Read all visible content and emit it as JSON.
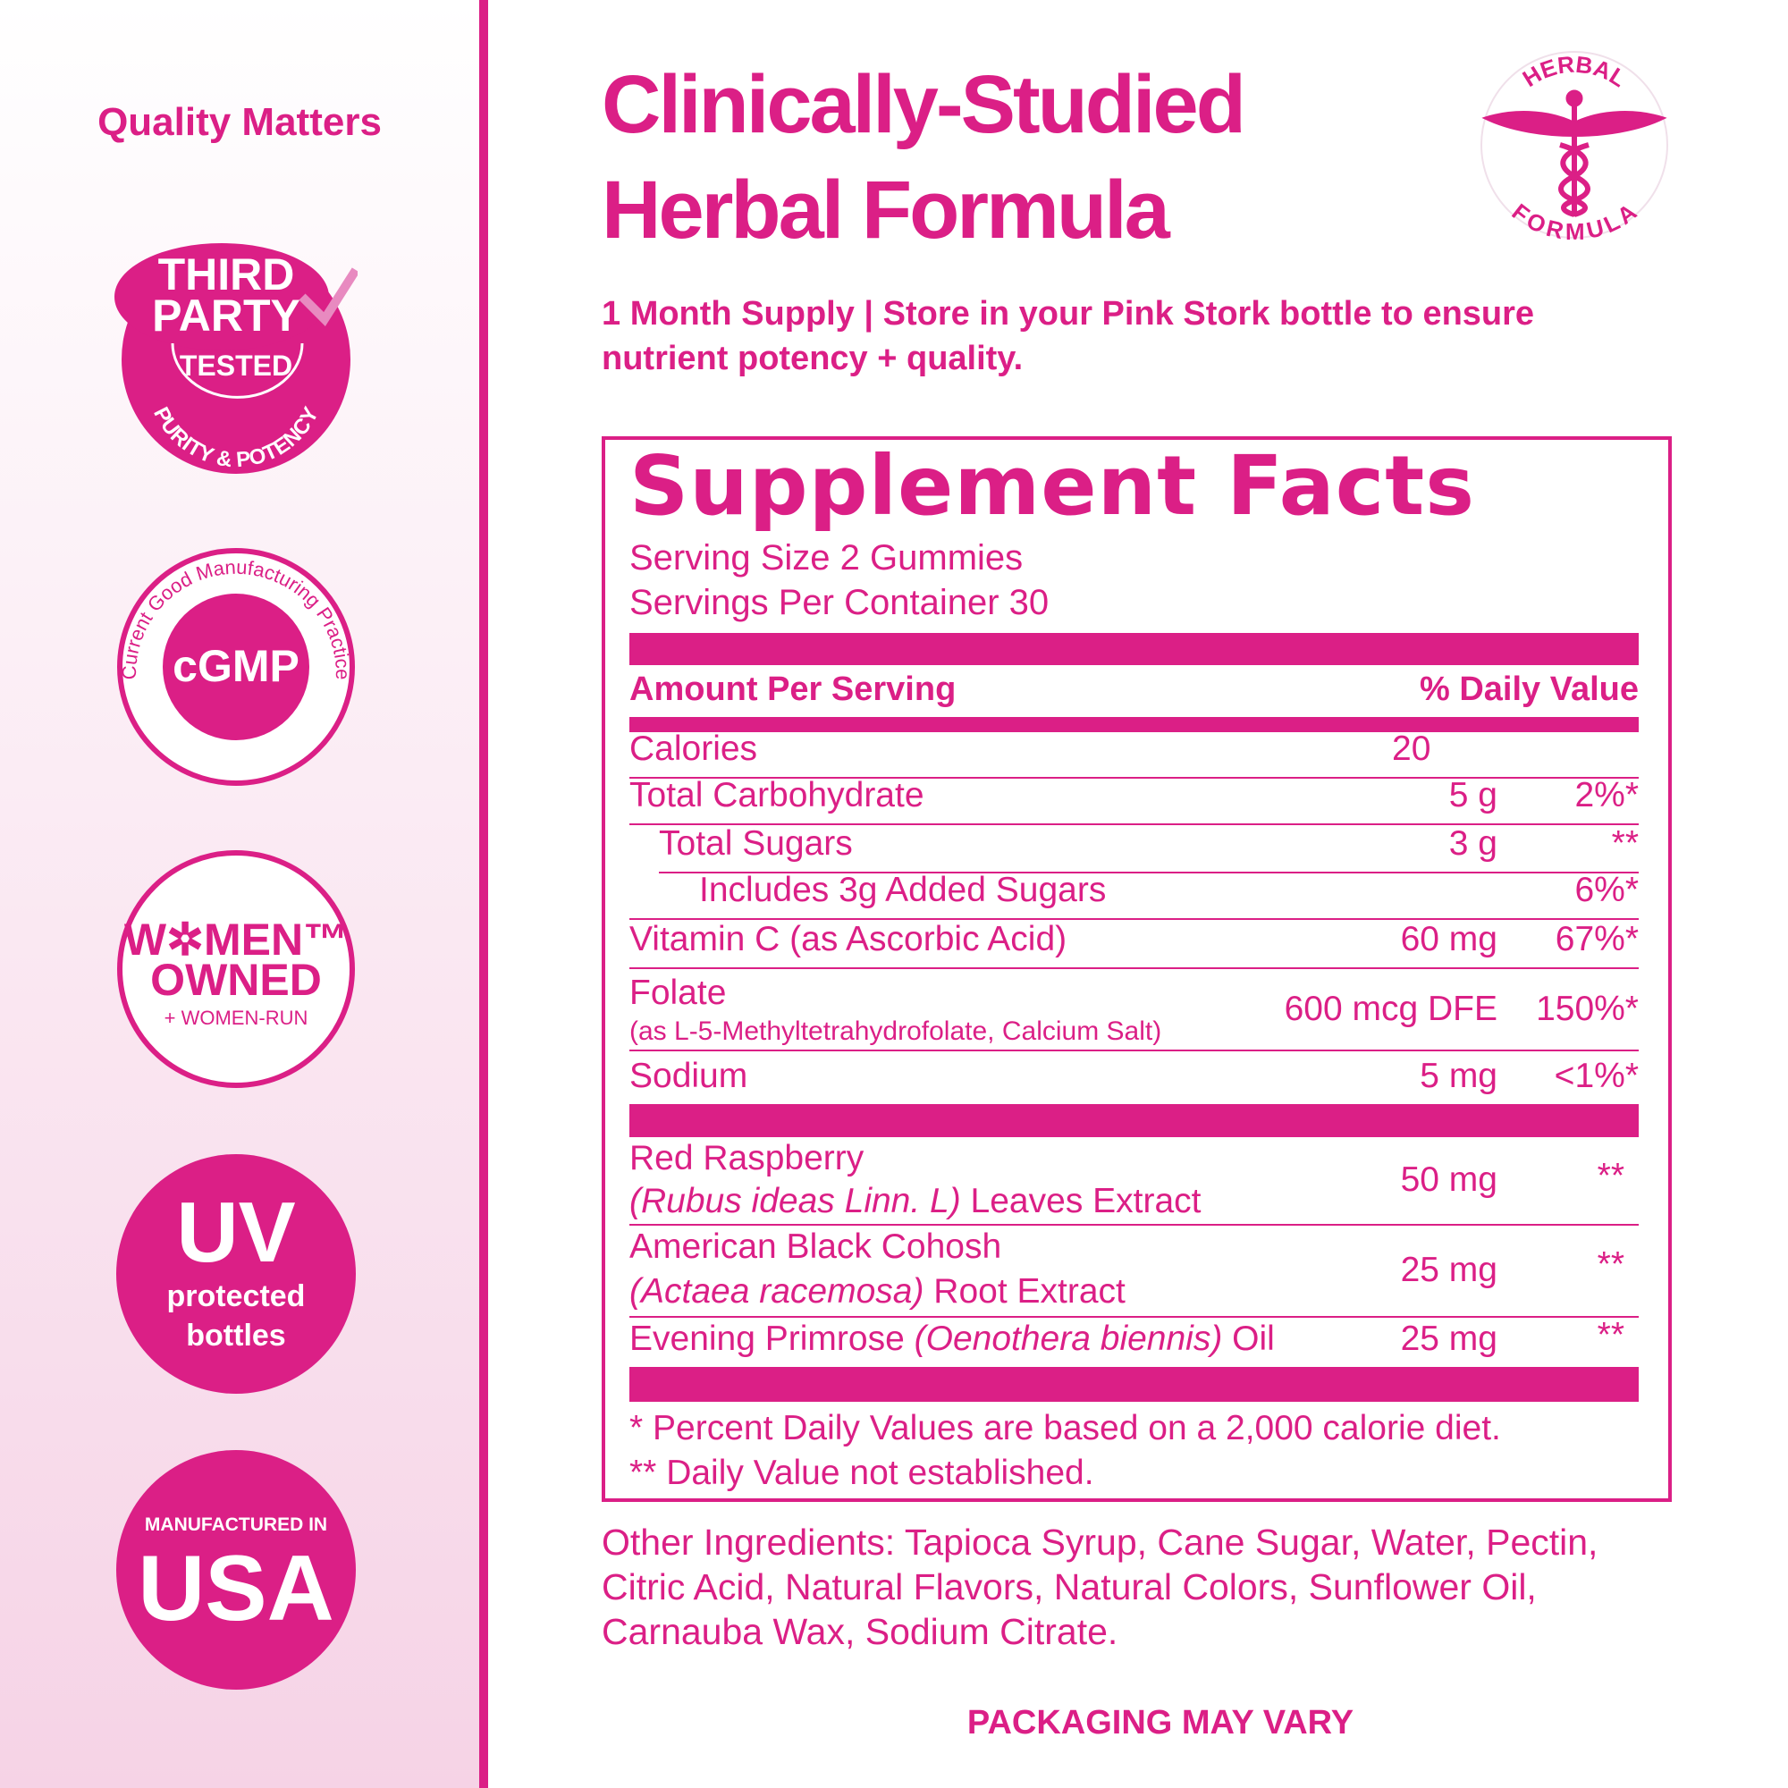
{
  "sidebar": {
    "heading": "Quality Matters",
    "badges": {
      "third_party": {
        "line1": "THIRD",
        "line2": "PARTY",
        "line3": "TESTED",
        "arc": "PURITY & POTENCY"
      },
      "cgmp": {
        "center": "cGMP",
        "arc": "Current Good Manufacturing Practice"
      },
      "women": {
        "line1": "W✲MEN™",
        "line2": "OWNED",
        "line3": "+ WOMEN-RUN"
      },
      "uv": {
        "line1": "UV",
        "line2": "protected",
        "line3": "bottles"
      },
      "usa": {
        "line1": "MANUFACTURED IN",
        "line2": "USA"
      }
    }
  },
  "header": {
    "title_line1": "Clinically-Studied",
    "title_line2": "Herbal Formula",
    "logo": {
      "top": "HERBAL",
      "bottom": "FORMULA",
      "icon": "caduceus-icon"
    },
    "subtitle_line1": "1 Month Supply | Store in your Pink Stork bottle to ensure",
    "subtitle_line2": "nutrient potency + quality."
  },
  "facts": {
    "title": "Supplement Facts",
    "serving_size": "Serving Size 2 Gummies",
    "servings_per_container": "Servings Per Container 30",
    "col_amount": "Amount Per Serving",
    "col_dv": "% Daily Value",
    "rows": [
      {
        "name": "Calories",
        "amount": "20",
        "dv": ""
      },
      {
        "name": "Total Carbohydrate",
        "amount": "5 g",
        "dv": "2%*"
      },
      {
        "name": "Total Sugars",
        "amount": "3 g",
        "dv": "**"
      },
      {
        "name": "Includes 3g Added Sugars",
        "amount": "",
        "dv": "6%*"
      },
      {
        "name": "Vitamin C (as Ascorbic Acid)",
        "amount": "60 mg",
        "dv": "67%*"
      },
      {
        "name": "Folate",
        "sub": "(as L-5-Methyltetrahydrofolate, Calcium Salt)",
        "amount": "600 mcg DFE",
        "dv": "150%*"
      },
      {
        "name": "Sodium",
        "amount": "5 mg",
        "dv": "<1%*"
      },
      {
        "name": "Red Raspberry",
        "latin": "(Rubus ideas Linn. L)",
        "rest": " Leaves Extract",
        "amount": "50 mg",
        "dv": "**"
      },
      {
        "name": "American Black Cohosh",
        "latin": "(Actaea racemosa)",
        "rest": " Root Extract",
        "amount": "25 mg",
        "dv": "**"
      },
      {
        "name": "Evening Primrose ",
        "latin": "(Oenothera biennis)",
        "rest": " Oil",
        "amount": "25 mg",
        "dv": "**"
      }
    ],
    "footnote1": "* Percent Daily Values are based on a 2,000 calorie diet.",
    "footnote2": "** Daily Value not established."
  },
  "other_ingredients": {
    "line1": "Other Ingredients: Tapioca Syrup, Cane Sugar, Water, Pectin,",
    "line2": "Citric Acid, Natural Flavors, Natural Colors, Sunflower Oil,",
    "line3": "Carnauba Wax, Sodium Citrate."
  },
  "packaging_note": "PACKAGING MAY VARY",
  "colors": {
    "brand_pink": "#db1f86",
    "sidebar_bottom": "#f6d3e6"
  }
}
